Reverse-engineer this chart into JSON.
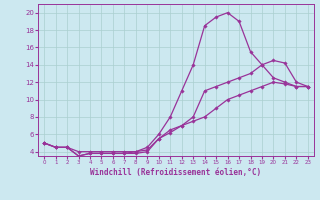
{
  "xlabel": "Windchill (Refroidissement éolien,°C)",
  "background_color": "#cce8f0",
  "grid_color": "#aacfcf",
  "line_color": "#993399",
  "spine_color": "#993399",
  "xlim": [
    -0.5,
    23.5
  ],
  "ylim": [
    3.5,
    21
  ],
  "xticks": [
    0,
    1,
    2,
    3,
    4,
    5,
    6,
    7,
    8,
    9,
    10,
    11,
    12,
    13,
    14,
    15,
    16,
    17,
    18,
    19,
    20,
    21,
    22,
    23
  ],
  "yticks": [
    4,
    6,
    8,
    10,
    12,
    14,
    16,
    18,
    20
  ],
  "series": [
    {
      "x": [
        0,
        1,
        2,
        3,
        4,
        5,
        6,
        7,
        8,
        9,
        10,
        11,
        12,
        13,
        14,
        15,
        16,
        17,
        18,
        19,
        20,
        21,
        22,
        23
      ],
      "y": [
        5,
        4.5,
        4.5,
        4.0,
        4.0,
        4.0,
        4.0,
        4.0,
        4.0,
        4.5,
        6.0,
        8.0,
        11.0,
        14.0,
        18.5,
        19.5,
        20.0,
        19.0,
        15.5,
        14.0,
        12.5,
        12.0,
        11.5,
        11.5
      ]
    },
    {
      "x": [
        0,
        1,
        2,
        3,
        4,
        5,
        6,
        7,
        8,
        9,
        10,
        11,
        12,
        13,
        14,
        15,
        16,
        17,
        18,
        19,
        20,
        21,
        22,
        23
      ],
      "y": [
        5,
        4.5,
        4.5,
        3.5,
        3.8,
        3.8,
        3.8,
        3.8,
        3.8,
        4.0,
        5.5,
        6.2,
        7.0,
        8.0,
        11.0,
        11.5,
        12.0,
        12.5,
        13.0,
        14.0,
        14.5,
        14.2,
        12.0,
        11.5
      ]
    },
    {
      "x": [
        0,
        1,
        2,
        3,
        4,
        5,
        6,
        7,
        8,
        9,
        10,
        11,
        12,
        13,
        14,
        15,
        16,
        17,
        18,
        19,
        20,
        21,
        22,
        23
      ],
      "y": [
        5,
        4.5,
        4.5,
        3.5,
        3.8,
        3.8,
        3.8,
        3.8,
        4.0,
        4.2,
        5.5,
        6.5,
        7.0,
        7.5,
        8.0,
        9.0,
        10.0,
        10.5,
        11.0,
        11.5,
        12.0,
        11.8,
        11.5,
        11.5
      ]
    }
  ]
}
